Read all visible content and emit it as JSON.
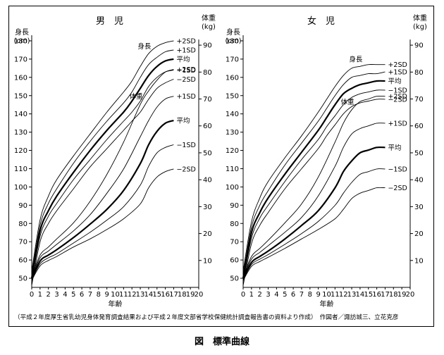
{
  "figure": {
    "caption": "図　標準曲線",
    "source": "（平成２年度厚生省乳幼児身体発育調査結果および平成２年度文部省学校保健統計調査報告書の資料より作成）　作図者／諏訪城三、立花克彦"
  },
  "chart_data": [
    {
      "type": "line",
      "title": "男　児",
      "xlabel": "年齢",
      "height_axis": {
        "label1": "身長",
        "label2": "(cm)",
        "range": [
          45,
          185
        ],
        "ticks": [
          50,
          60,
          70,
          80,
          90,
          100,
          110,
          120,
          130,
          140,
          150,
          160,
          170,
          180
        ]
      },
      "weight_axis": {
        "label1": "体重",
        "label2": "(kg)",
        "range": [
          0,
          95
        ],
        "ticks": [
          10,
          20,
          30,
          40,
          50,
          60,
          70,
          80,
          90
        ]
      },
      "x_ticks": [
        0,
        1,
        2,
        3,
        4,
        5,
        6,
        7,
        8,
        9,
        10,
        11,
        12,
        13,
        14,
        15,
        16,
        17,
        18,
        19,
        20
      ],
      "x_range": [
        0,
        20
      ],
      "height_group_label": "身長",
      "weight_group_label": "体重",
      "height_series": [
        {
          "name": "+2SD",
          "x": [
            0,
            1,
            2,
            3,
            5,
            7,
            9,
            11,
            12,
            13,
            14,
            15,
            16,
            17
          ],
          "y": [
            54,
            82,
            95,
            104,
            117,
            129,
            141,
            152,
            158,
            166,
            173,
            177,
            179,
            180
          ]
        },
        {
          "name": "+1SD",
          "x": [
            0,
            1,
            2,
            3,
            5,
            7,
            9,
            11,
            12,
            13,
            14,
            15,
            16,
            17
          ],
          "y": [
            52,
            79,
            91,
            99,
            113,
            125,
            136,
            146,
            152,
            160,
            167,
            171,
            174,
            175
          ]
        },
        {
          "name": "平均",
          "x": [
            0,
            1,
            2,
            3,
            5,
            7,
            9,
            11,
            12,
            13,
            14,
            15,
            16,
            17
          ],
          "y": [
            50,
            76,
            87,
            95,
            108,
            120,
            131,
            141,
            147,
            154,
            161,
            166,
            169,
            170
          ]
        },
        {
          "name": "−1SD",
          "x": [
            0,
            1,
            2,
            3,
            5,
            7,
            9,
            11,
            12,
            13,
            14,
            15,
            16,
            17
          ],
          "y": [
            48,
            73,
            84,
            91,
            104,
            115,
            126,
            136,
            141,
            147,
            155,
            160,
            163,
            164
          ]
        },
        {
          "name": "−2SD",
          "x": [
            0,
            1,
            2,
            3,
            5,
            7,
            9,
            11,
            12,
            13,
            14,
            15,
            16,
            17
          ],
          "y": [
            46,
            70,
            80,
            87,
            99,
            111,
            121,
            131,
            136,
            141,
            148,
            154,
            157,
            159
          ]
        }
      ],
      "weight_series": [
        {
          "name": "+2SD",
          "x": [
            0,
            1,
            2,
            3,
            5,
            7,
            9,
            11,
            13,
            14,
            15,
            16,
            17
          ],
          "y": [
            4,
            12,
            15,
            18,
            24,
            32,
            42,
            54,
            68,
            73,
            77,
            80,
            81
          ]
        },
        {
          "name": "+1SD",
          "x": [
            0,
            1,
            2,
            3,
            5,
            7,
            9,
            11,
            13,
            14,
            15,
            16,
            17
          ],
          "y": [
            3.6,
            11,
            13.5,
            16,
            21,
            27,
            35,
            44,
            56,
            62,
            67,
            70,
            71
          ]
        },
        {
          "name": "平均",
          "x": [
            0,
            1,
            2,
            3,
            5,
            7,
            9,
            11,
            13,
            14,
            15,
            16,
            17
          ],
          "y": [
            3.2,
            9.8,
            12,
            14,
            18.5,
            23.5,
            29,
            36,
            46,
            53,
            58,
            61,
            62
          ]
        },
        {
          "name": "−1SD",
          "x": [
            0,
            1,
            2,
            3,
            5,
            7,
            9,
            11,
            13,
            14,
            15,
            16,
            17
          ],
          "y": [
            2.9,
            8.8,
            11,
            12.5,
            16.5,
            20.5,
            25,
            30,
            38,
            45,
            50,
            52,
            53
          ]
        },
        {
          "name": "−2SD",
          "x": [
            0,
            1,
            2,
            3,
            5,
            7,
            9,
            11,
            13,
            14,
            15,
            16,
            17
          ],
          "y": [
            2.6,
            8,
            10,
            11.5,
            15,
            18,
            21.5,
            25.5,
            31,
            37,
            41,
            43,
            44
          ]
        }
      ]
    },
    {
      "type": "line",
      "title": "女　児",
      "xlabel": "年齢",
      "height_axis": {
        "label1": "身長",
        "label2": "(cm)",
        "range": [
          45,
          185
        ],
        "ticks": [
          50,
          60,
          70,
          80,
          90,
          100,
          110,
          120,
          130,
          140,
          150,
          160,
          170,
          180
        ]
      },
      "weight_axis": {
        "label1": "体重",
        "label2": "(kg)",
        "range": [
          0,
          95
        ],
        "ticks": [
          10,
          20,
          30,
          40,
          50,
          60,
          70,
          80,
          90
        ]
      },
      "x_ticks": [
        0,
        1,
        2,
        3,
        4,
        5,
        6,
        7,
        8,
        9,
        10,
        11,
        12,
        13,
        14,
        15,
        16,
        17,
        18,
        19,
        20
      ],
      "x_range": [
        0,
        20
      ],
      "height_group_label": "身長",
      "weight_group_label": "体重",
      "height_series": [
        {
          "name": "+2SD",
          "x": [
            0,
            1,
            2,
            3,
            5,
            7,
            9,
            10,
            11,
            12,
            13,
            14,
            15,
            16,
            17
          ],
          "y": [
            54,
            81,
            94,
            103,
            116,
            128,
            141,
            148,
            155,
            161,
            165,
            166,
            167,
            167,
            167
          ]
        },
        {
          "name": "+1SD",
          "x": [
            0,
            1,
            2,
            3,
            5,
            7,
            9,
            10,
            11,
            12,
            13,
            14,
            15,
            16,
            17
          ],
          "y": [
            52,
            78,
            90,
            98,
            112,
            124,
            136,
            143,
            150,
            156,
            160,
            161,
            162,
            162,
            163
          ]
        },
        {
          "name": "平均",
          "x": [
            0,
            1,
            2,
            3,
            5,
            7,
            9,
            10,
            11,
            12,
            13,
            14,
            15,
            16,
            17
          ],
          "y": [
            50,
            75,
            86,
            94,
            107,
            119,
            131,
            138,
            145,
            151,
            154,
            156,
            157,
            158,
            158
          ]
        },
        {
          "name": "−1SD",
          "x": [
            0,
            1,
            2,
            3,
            5,
            7,
            9,
            10,
            11,
            12,
            13,
            14,
            15,
            16,
            17
          ],
          "y": [
            48,
            72,
            83,
            90,
            103,
            115,
            126,
            133,
            139,
            145,
            149,
            151,
            152,
            153,
            153
          ]
        },
        {
          "name": "−2SD",
          "x": [
            0,
            1,
            2,
            3,
            5,
            7,
            9,
            10,
            11,
            12,
            13,
            14,
            15,
            16,
            17
          ],
          "y": [
            46,
            69,
            79,
            86,
            99,
            110,
            121,
            128,
            134,
            140,
            144,
            146,
            147,
            148,
            148
          ]
        }
      ],
      "weight_series": [
        {
          "name": "+2SD",
          "x": [
            0,
            1,
            2,
            3,
            5,
            7,
            9,
            11,
            12,
            13,
            14,
            15,
            16,
            17
          ],
          "y": [
            4,
            11.5,
            14.5,
            17.5,
            24,
            31,
            41,
            54,
            61,
            66,
            69,
            70,
            71,
            71
          ]
        },
        {
          "name": "+1SD",
          "x": [
            0,
            1,
            2,
            3,
            5,
            7,
            9,
            11,
            12,
            13,
            14,
            15,
            16,
            17
          ],
          "y": [
            3.6,
            10.5,
            13,
            15.5,
            20.5,
            26,
            34,
            45,
            52,
            57,
            59,
            60,
            61,
            61
          ]
        },
        {
          "name": "平均",
          "x": [
            0,
            1,
            2,
            3,
            5,
            7,
            9,
            11,
            12,
            13,
            14,
            15,
            16,
            17
          ],
          "y": [
            3.2,
            9.3,
            11.5,
            13.5,
            18,
            23,
            28.5,
            37,
            43,
            47,
            50,
            51,
            52,
            52
          ]
        },
        {
          "name": "−1SD",
          "x": [
            0,
            1,
            2,
            3,
            5,
            7,
            9,
            11,
            12,
            13,
            14,
            15,
            16,
            17
          ],
          "y": [
            2.9,
            8.5,
            10.5,
            12.2,
            16,
            20,
            24.5,
            30.5,
            35,
            39,
            42,
            43,
            44,
            44
          ]
        },
        {
          "name": "−2SD",
          "x": [
            0,
            1,
            2,
            3,
            5,
            7,
            9,
            11,
            12,
            13,
            14,
            15,
            16,
            17
          ],
          "y": [
            2.6,
            7.8,
            9.6,
            11.2,
            14.5,
            18,
            21.5,
            25.5,
            29,
            33,
            35,
            36,
            37,
            37
          ]
        }
      ]
    }
  ]
}
